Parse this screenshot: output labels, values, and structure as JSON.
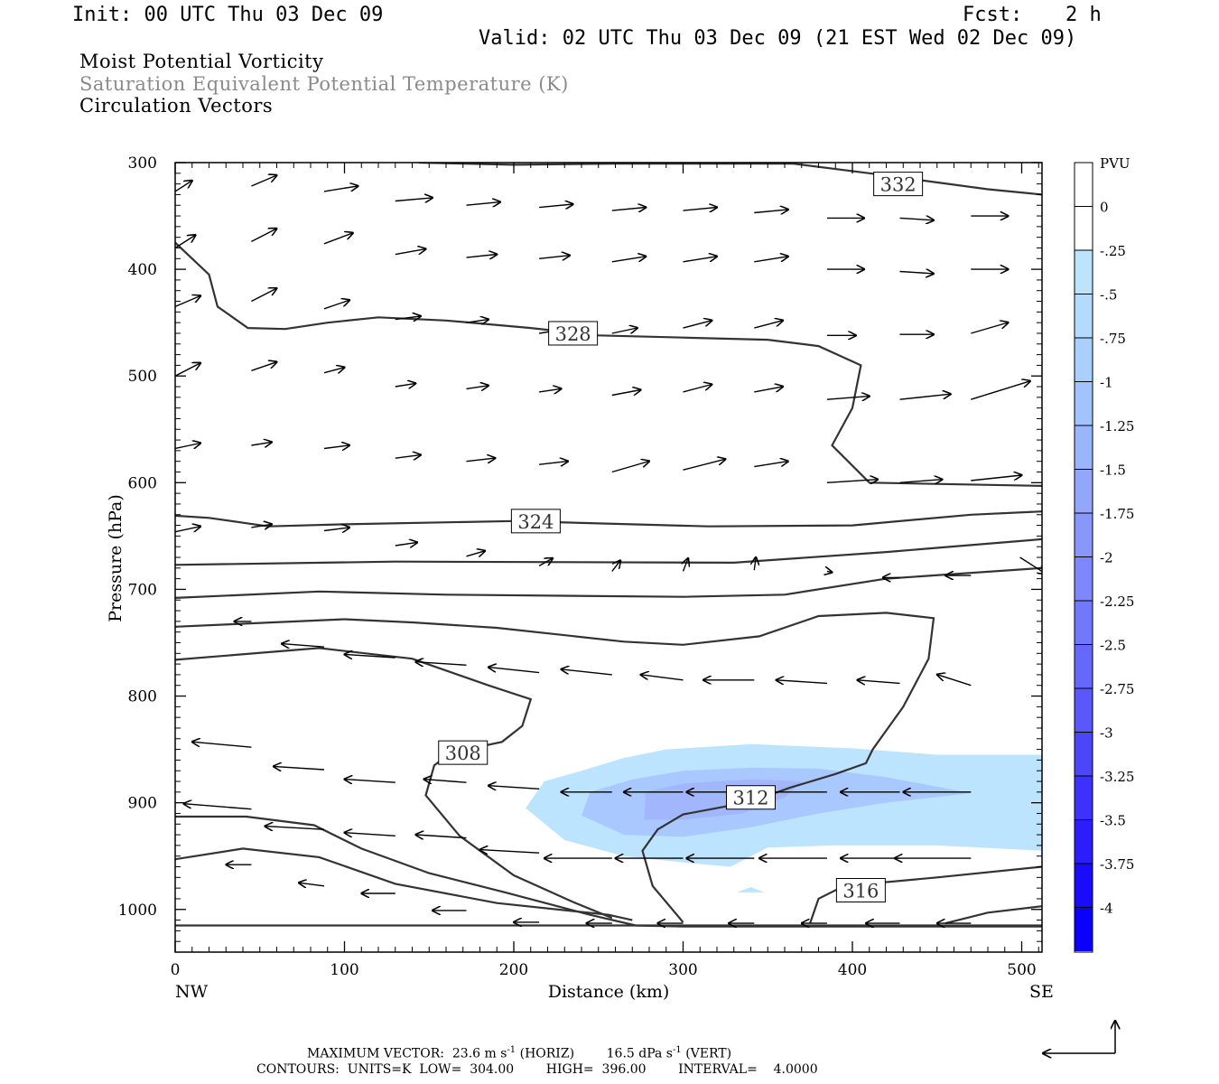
{
  "header": {
    "init": "Init: 00 UTC Thu 03 Dec 09",
    "fcst_label": "Fcst:",
    "fcst_value": "2 h",
    "valid": "Valid: 02 UTC Thu 03 Dec 09 (21 EST Wed 02 Dec 09)"
  },
  "fields": {
    "line1": "Moist Potential Vorticity",
    "line2": "Saturation Equivalent Potential Temperature (K)",
    "line3": "Circulation Vectors"
  },
  "colors": {
    "contour": "#333333",
    "fill_light": "#bde4ff",
    "fill_mid": "#a9c8ff",
    "fill_dark": "#a2b6fb",
    "grey_text": "#8a8a8a"
  },
  "chart_data": {
    "type": "cross-section",
    "xlabel": "Distance (km)",
    "ylabel": "Pressure (hPa)",
    "xlim": [
      0,
      512
    ],
    "ylim": [
      1040,
      300
    ],
    "x_ticks": [
      "0",
      "100",
      "200",
      "300",
      "400",
      "500"
    ],
    "y_ticks": [
      "300",
      "400",
      "500",
      "600",
      "700",
      "800",
      "900",
      "1000"
    ],
    "x_end_labels": {
      "left": "NW",
      "right": "SE"
    },
    "contour_labels": [
      {
        "text": "332",
        "x": 427,
        "p": 320
      },
      {
        "text": "328",
        "x": 235,
        "p": 460
      },
      {
        "text": "324",
        "x": 213,
        "p": 636
      },
      {
        "text": "308",
        "x": 170,
        "p": 853
      },
      {
        "text": "312",
        "x": 340,
        "p": 895
      },
      {
        "text": "316",
        "x": 405,
        "p": 982
      }
    ],
    "contours": [
      [
        [
          144,
          300
        ],
        [
          200,
          302
        ],
        [
          260,
          301
        ],
        [
          365,
          301
        ],
        [
          410,
          310
        ],
        [
          480,
          325
        ],
        [
          512,
          330
        ]
      ],
      [
        [
          0,
          375
        ],
        [
          20,
          405
        ],
        [
          25,
          435
        ],
        [
          43,
          455
        ],
        [
          65,
          456
        ],
        [
          90,
          450
        ],
        [
          120,
          445
        ],
        [
          160,
          448
        ],
        [
          210,
          455
        ],
        [
          250,
          462
        ],
        [
          300,
          464
        ],
        [
          350,
          466
        ],
        [
          380,
          472
        ],
        [
          405,
          490
        ],
        [
          400,
          530
        ],
        [
          388,
          565
        ],
        [
          410,
          600
        ],
        [
          512,
          603
        ]
      ],
      [
        [
          0,
          631
        ],
        [
          20,
          633
        ],
        [
          55,
          641
        ],
        [
          100,
          639
        ],
        [
          200,
          636
        ],
        [
          315,
          641
        ],
        [
          400,
          640
        ],
        [
          470,
          630
        ],
        [
          512,
          627
        ]
      ],
      [
        [
          0,
          677
        ],
        [
          130,
          674
        ],
        [
          330,
          675
        ],
        [
          420,
          665
        ],
        [
          512,
          653
        ]
      ],
      [
        [
          0,
          708
        ],
        [
          85,
          702
        ],
        [
          160,
          705
        ],
        [
          300,
          707
        ],
        [
          360,
          705
        ],
        [
          420,
          690
        ],
        [
          512,
          680
        ]
      ],
      [
        [
          0,
          735
        ],
        [
          100,
          728
        ],
        [
          140,
          731
        ],
        [
          190,
          736
        ],
        [
          265,
          749
        ],
        [
          300,
          752
        ],
        [
          345,
          744
        ],
        [
          380,
          725
        ],
        [
          420,
          722
        ],
        [
          448,
          727
        ],
        [
          445,
          765
        ],
        [
          430,
          810
        ],
        [
          412,
          850
        ],
        [
          408,
          863
        ],
        [
          390,
          873
        ],
        [
          363,
          886
        ],
        [
          340,
          899
        ],
        [
          300,
          911
        ],
        [
          285,
          925
        ],
        [
          276,
          945
        ],
        [
          282,
          978
        ],
        [
          300,
          1012
        ]
      ],
      [
        [
          0,
          766
        ],
        [
          85,
          755
        ],
        [
          140,
          765
        ],
        [
          185,
          790
        ],
        [
          210,
          803
        ],
        [
          205,
          828
        ],
        [
          193,
          843
        ],
        [
          163,
          853
        ],
        [
          153,
          865
        ],
        [
          148,
          893
        ],
        [
          168,
          931
        ],
        [
          200,
          968
        ],
        [
          235,
          993
        ],
        [
          258,
          1008
        ]
      ],
      [
        [
          0,
          913
        ],
        [
          42,
          913
        ],
        [
          82,
          921
        ],
        [
          110,
          943
        ],
        [
          150,
          966
        ],
        [
          195,
          984
        ],
        [
          245,
          1005
        ],
        [
          272,
          1015
        ],
        [
          300,
          1016
        ],
        [
          500,
          1016
        ],
        [
          512,
          1016
        ]
      ],
      [
        [
          0,
          953
        ],
        [
          40,
          943
        ],
        [
          85,
          951
        ],
        [
          130,
          976
        ],
        [
          190,
          994
        ],
        [
          256,
          1005
        ],
        [
          270,
          1010
        ]
      ],
      [
        [
          0,
          1015
        ],
        [
          512,
          1015
        ]
      ],
      [
        [
          375,
          1013
        ],
        [
          380,
          990
        ],
        [
          395,
          978
        ],
        [
          450,
          970
        ],
        [
          512,
          960
        ]
      ],
      [
        [
          455,
          1013
        ],
        [
          480,
          1003
        ],
        [
          512,
          997
        ]
      ]
    ],
    "pv_shading": {
      "legend_title": "PVU",
      "levels": [
        "0",
        "-.25",
        "-.5",
        "-.75",
        "-1",
        "-1.25",
        "-1.5",
        "-1.75",
        "-2",
        "-2.25",
        "-2.5",
        "-2.75",
        "-3",
        "-3.25",
        "-3.5",
        "-3.75",
        "-4"
      ],
      "regions": [
        {
          "value": -0.25,
          "polygon": [
            [
              207,
              905
            ],
            [
              218,
              880
            ],
            [
              240,
              870
            ],
            [
              265,
              858
            ],
            [
              290,
              850
            ],
            [
              340,
              845
            ],
            [
              400,
              849
            ],
            [
              450,
              855
            ],
            [
              512,
              855
            ],
            [
              512,
              945
            ],
            [
              450,
              940
            ],
            [
              390,
              940
            ],
            [
              350,
              942
            ],
            [
              328,
              960
            ],
            [
              300,
              956
            ],
            [
              265,
              950
            ],
            [
              230,
              935
            ]
          ]
        },
        {
          "value": -0.5,
          "polygon": [
            [
              240,
              912
            ],
            [
              245,
              890
            ],
            [
              270,
              878
            ],
            [
              300,
              870
            ],
            [
              340,
              867
            ],
            [
              380,
              868
            ],
            [
              420,
              876
            ],
            [
              470,
              891
            ],
            [
              420,
              900
            ],
            [
              380,
              910
            ],
            [
              340,
              923
            ],
            [
              300,
              932
            ],
            [
              265,
              930
            ]
          ]
        },
        {
          "value": -0.75,
          "polygon": [
            [
              277,
              916
            ],
            [
              278,
              890
            ],
            [
              300,
              882
            ],
            [
              340,
              878
            ],
            [
              370,
              880
            ],
            [
              360,
              895
            ],
            [
              335,
              910
            ],
            [
              300,
              916
            ]
          ]
        },
        {
          "value": -0.25,
          "polygon": [
            [
              332,
              984
            ],
            [
              340,
              979
            ],
            [
              348,
              984
            ]
          ]
        }
      ]
    },
    "vectors": [
      [
        0,
        327,
        10,
        -10
      ],
      [
        45,
        322,
        15,
        -10
      ],
      [
        88,
        327,
        20,
        -5
      ],
      [
        130,
        336,
        22,
        -3
      ],
      [
        172,
        340,
        20,
        -3
      ],
      [
        215,
        342,
        20,
        -3
      ],
      [
        258,
        345,
        20,
        -3
      ],
      [
        300,
        345,
        20,
        -3
      ],
      [
        342,
        347,
        20,
        -3
      ],
      [
        385,
        352,
        22,
        0
      ],
      [
        428,
        352,
        20,
        2
      ],
      [
        470,
        350,
        22,
        0
      ],
      [
        0,
        380,
        12,
        -12
      ],
      [
        45,
        374,
        15,
        -12
      ],
      [
        88,
        376,
        17,
        -10
      ],
      [
        130,
        386,
        18,
        -5
      ],
      [
        172,
        389,
        18,
        -3
      ],
      [
        215,
        390,
        18,
        -3
      ],
      [
        258,
        393,
        20,
        -5
      ],
      [
        300,
        393,
        20,
        -5
      ],
      [
        342,
        393,
        20,
        -5
      ],
      [
        385,
        400,
        22,
        0
      ],
      [
        428,
        402,
        20,
        2
      ],
      [
        470,
        400,
        22,
        0
      ],
      [
        0,
        435,
        15,
        -10
      ],
      [
        45,
        430,
        15,
        -12
      ],
      [
        88,
        437,
        15,
        -8
      ],
      [
        130,
        447,
        15,
        -3
      ],
      [
        172,
        450,
        13,
        -3
      ],
      [
        215,
        460,
        12,
        -3
      ],
      [
        258,
        460,
        15,
        -5
      ],
      [
        300,
        455,
        17,
        -7
      ],
      [
        342,
        455,
        17,
        -7
      ],
      [
        385,
        462,
        17,
        0
      ],
      [
        428,
        461,
        20,
        0
      ],
      [
        470,
        460,
        22,
        -10
      ],
      [
        0,
        500,
        15,
        -12
      ],
      [
        45,
        495,
        15,
        -8
      ],
      [
        88,
        497,
        12,
        -5
      ],
      [
        130,
        510,
        12,
        -3
      ],
      [
        172,
        512,
        13,
        -3
      ],
      [
        215,
        515,
        13,
        -3
      ],
      [
        258,
        518,
        17,
        -5
      ],
      [
        300,
        515,
        17,
        -7
      ],
      [
        342,
        515,
        17,
        -5
      ],
      [
        385,
        522,
        25,
        -3
      ],
      [
        428,
        522,
        30,
        -5
      ],
      [
        470,
        522,
        35,
        -17
      ],
      [
        0,
        568,
        15,
        -5
      ],
      [
        45,
        565,
        12,
        -3
      ],
      [
        88,
        568,
        15,
        -3
      ],
      [
        130,
        577,
        15,
        -3
      ],
      [
        172,
        580,
        17,
        -3
      ],
      [
        215,
        583,
        17,
        -3
      ],
      [
        258,
        590,
        22,
        -10
      ],
      [
        300,
        588,
        25,
        -10
      ],
      [
        342,
        585,
        20,
        -5
      ],
      [
        385,
        600,
        30,
        -3
      ],
      [
        428,
        600,
        25,
        -3
      ],
      [
        470,
        598,
        30,
        -5
      ],
      [
        0,
        646,
        15,
        -5
      ],
      [
        45,
        642,
        12,
        -3
      ],
      [
        88,
        645,
        15,
        -3
      ],
      [
        130,
        659,
        13,
        -3
      ],
      [
        172,
        669,
        11,
        -5
      ],
      [
        215,
        678,
        8,
        -7
      ],
      [
        258,
        683,
        5,
        -10
      ],
      [
        300,
        683,
        3,
        -12
      ],
      [
        342,
        682,
        1,
        -12
      ],
      [
        385,
        683,
        3,
        1
      ],
      [
        428,
        689,
        -10,
        0
      ],
      [
        470,
        687,
        -15,
        0
      ],
      [
        499,
        670,
        15,
        15
      ],
      [
        0,
        735,
        -8,
        0
      ],
      [
        45,
        730,
        -10,
        0
      ],
      [
        88,
        754,
        -25,
        -3
      ],
      [
        130,
        764,
        -30,
        -3
      ],
      [
        172,
        771,
        -30,
        -3
      ],
      [
        215,
        778,
        -30,
        -5
      ],
      [
        258,
        780,
        -30,
        -5
      ],
      [
        300,
        785,
        -25,
        -5
      ],
      [
        342,
        785,
        -30,
        0
      ],
      [
        385,
        788,
        -30,
        -3
      ],
      [
        428,
        788,
        -25,
        -3
      ],
      [
        470,
        790,
        -20,
        -10
      ],
      [
        0,
        842,
        -30,
        -5
      ],
      [
        45,
        848,
        -35,
        -5
      ],
      [
        88,
        869,
        -30,
        -3
      ],
      [
        130,
        881,
        -30,
        -3
      ],
      [
        172,
        881,
        -25,
        -3
      ],
      [
        215,
        887,
        -30,
        -3
      ],
      [
        258,
        890,
        -30,
        0
      ],
      [
        300,
        890,
        -35,
        0
      ],
      [
        342,
        890,
        -40,
        0
      ],
      [
        385,
        890,
        -40,
        0
      ],
      [
        428,
        890,
        -35,
        0
      ],
      [
        470,
        890,
        -40,
        0
      ],
      [
        0,
        900,
        -30,
        -5
      ],
      [
        45,
        906,
        -40,
        -5
      ],
      [
        88,
        925,
        -35,
        -3
      ],
      [
        130,
        931,
        -30,
        -3
      ],
      [
        172,
        933,
        -30,
        -3
      ],
      [
        215,
        947,
        -35,
        -3
      ],
      [
        258,
        952,
        -40,
        0
      ],
      [
        300,
        952,
        -40,
        0
      ],
      [
        342,
        952,
        -40,
        0
      ],
      [
        385,
        952,
        -40,
        0
      ],
      [
        428,
        952,
        -35,
        0
      ],
      [
        470,
        952,
        -45,
        0
      ],
      [
        0,
        950,
        -15,
        0
      ],
      [
        45,
        958,
        -15,
        0
      ],
      [
        88,
        978,
        -15,
        -3
      ],
      [
        130,
        985,
        -20,
        0
      ],
      [
        172,
        1001,
        -20,
        0
      ],
      [
        215,
        1012,
        -15,
        0
      ],
      [
        258,
        1013,
        -15,
        0
      ],
      [
        300,
        1013,
        -15,
        0
      ],
      [
        342,
        1013,
        -15,
        0
      ],
      [
        385,
        1013,
        -15,
        0
      ],
      [
        428,
        1013,
        -20,
        0
      ],
      [
        470,
        1013,
        -20,
        0
      ]
    ]
  },
  "footer": {
    "vector_label": "MAXIMUM VECTOR:  23.6 m s",
    "vector_exp1": "-1",
    "vector_horiz": " (HORIZ)        16.5 dPa s",
    "vector_exp2": "-1",
    "vector_vert": " (VERT)",
    "contours_line": "CONTOURS:  UNITS=K  LOW=  304.00        HIGH=  396.00        INTERVAL=    4.0000"
  }
}
